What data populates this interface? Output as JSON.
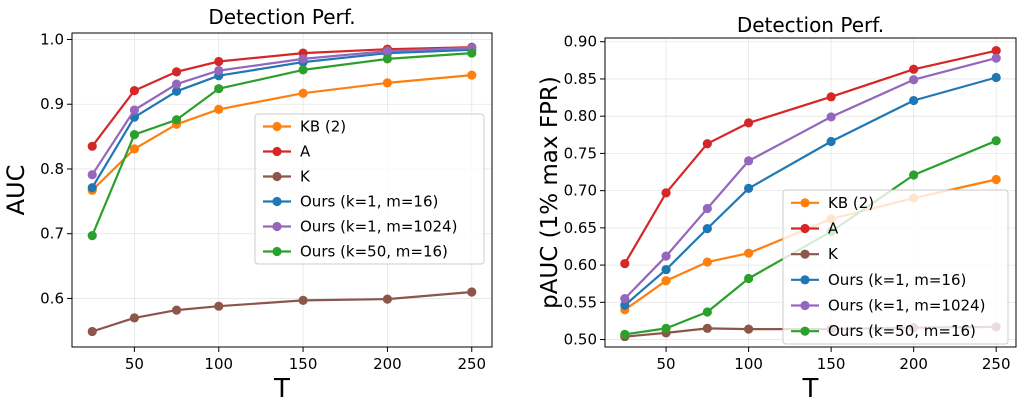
{
  "chart_data": [
    {
      "type": "line",
      "title": "Detection Perf.",
      "xlabel": "T",
      "ylabel": "AUC",
      "x": [
        25,
        50,
        75,
        100,
        150,
        200,
        250
      ],
      "xlim": [
        13,
        262
      ],
      "ylim": [
        0.525,
        1.01
      ],
      "xticks": [
        50,
        100,
        150,
        200,
        250
      ],
      "yticks": [
        0.6,
        0.7,
        0.8,
        0.9,
        1.0
      ],
      "ytick_labels": [
        "0.6",
        "0.7",
        "0.8",
        "0.9",
        "1.0"
      ],
      "grid": true,
      "legend_position": "center-right",
      "series": [
        {
          "name": "KB (2)",
          "color": "#ff7f0e",
          "values": [
            0.767,
            0.831,
            0.869,
            0.892,
            0.917,
            0.933,
            0.945
          ]
        },
        {
          "name": "A",
          "color": "#d62728",
          "values": [
            0.835,
            0.921,
            0.95,
            0.966,
            0.979,
            0.985,
            0.988
          ]
        },
        {
          "name": "K",
          "color": "#8c564b",
          "values": [
            0.549,
            0.57,
            0.582,
            0.588,
            0.597,
            0.599,
            0.61
          ]
        },
        {
          "name": "Ours (k=1, m=16)",
          "color": "#1f77b4",
          "values": [
            0.771,
            0.88,
            0.92,
            0.944,
            0.965,
            0.979,
            0.984
          ]
        },
        {
          "name": "Ours (k=1, m=1024)",
          "color": "#9467bd",
          "values": [
            0.791,
            0.891,
            0.931,
            0.952,
            0.97,
            0.982,
            0.987
          ]
        },
        {
          "name": "Ours (k=50, m=16)",
          "color": "#2ca02c",
          "values": [
            0.697,
            0.853,
            0.876,
            0.924,
            0.953,
            0.97,
            0.979
          ]
        }
      ]
    },
    {
      "type": "line",
      "title": "Detection Perf.",
      "xlabel": "T",
      "ylabel": "pAUC (1% max FPR)",
      "x": [
        25,
        50,
        75,
        100,
        150,
        200,
        250
      ],
      "xlim": [
        13,
        262
      ],
      "ylim": [
        0.49,
        0.905
      ],
      "xticks": [
        50,
        100,
        150,
        200,
        250
      ],
      "yticks": [
        0.5,
        0.55,
        0.6,
        0.65,
        0.7,
        0.75,
        0.8,
        0.85,
        0.9
      ],
      "ytick_labels": [
        "0.50",
        "0.55",
        "0.60",
        "0.65",
        "0.70",
        "0.75",
        "0.80",
        "0.85",
        "0.90"
      ],
      "grid": true,
      "legend_position": "lower-right",
      "series": [
        {
          "name": "KB (2)",
          "color": "#ff7f0e",
          "values": [
            0.54,
            0.579,
            0.604,
            0.616,
            0.662,
            0.69,
            0.715
          ]
        },
        {
          "name": "A",
          "color": "#d62728",
          "values": [
            0.602,
            0.697,
            0.763,
            0.791,
            0.826,
            0.863,
            0.888
          ]
        },
        {
          "name": "K",
          "color": "#8c564b",
          "values": [
            0.504,
            0.509,
            0.515,
            0.514,
            0.514,
            0.516,
            0.517
          ]
        },
        {
          "name": "Ours (k=1, m=16)",
          "color": "#1f77b4",
          "values": [
            0.546,
            0.594,
            0.649,
            0.703,
            0.766,
            0.821,
            0.852
          ]
        },
        {
          "name": "Ours (k=1, m=1024)",
          "color": "#9467bd",
          "values": [
            0.555,
            0.612,
            0.676,
            0.74,
            0.799,
            0.849,
            0.878
          ]
        },
        {
          "name": "Ours (k=50, m=16)",
          "color": "#2ca02c",
          "values": [
            0.507,
            0.515,
            0.537,
            0.582,
            0.645,
            0.721,
            0.767
          ]
        }
      ]
    }
  ]
}
